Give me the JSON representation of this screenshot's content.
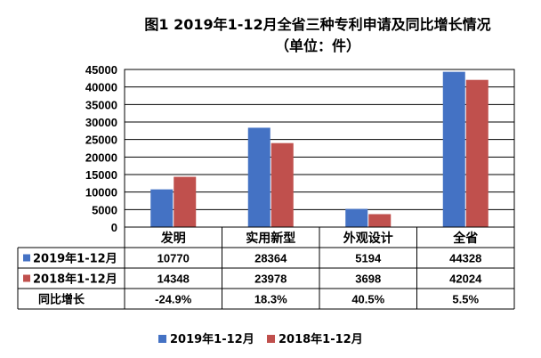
{
  "chart_data": {
    "type": "bar",
    "title_line1": "图1  2019年1-12月全省三种专利申请及同比增长情况",
    "title_line2": "（单位：件）",
    "categories": [
      "发明",
      "实用新型",
      "外观设计",
      "全省"
    ],
    "series": [
      {
        "name": "2019年1-12月",
        "color": "#4472C4",
        "values": [
          10770,
          28364,
          5194,
          44328
        ]
      },
      {
        "name": "2018年1-12月",
        "color": "#C0504D",
        "values": [
          14348,
          23978,
          3698,
          42024
        ]
      }
    ],
    "ylim": [
      0,
      45000
    ],
    "yticks": [
      0,
      5000,
      10000,
      15000,
      20000,
      25000,
      30000,
      35000,
      40000,
      45000
    ],
    "grid": true,
    "legend_position": "bottom",
    "table": {
      "rows": [
        {
          "label": "2019年1-12月",
          "series": 0,
          "cells": [
            "10770",
            "28364",
            "5194",
            "44328"
          ]
        },
        {
          "label": "2018年1-12月",
          "series": 1,
          "cells": [
            "14348",
            "23978",
            "3698",
            "42024"
          ]
        },
        {
          "label": "同比增长",
          "series": null,
          "cells": [
            "-24.9%",
            "18.3%",
            "40.5%",
            "5.5%"
          ]
        }
      ]
    }
  }
}
